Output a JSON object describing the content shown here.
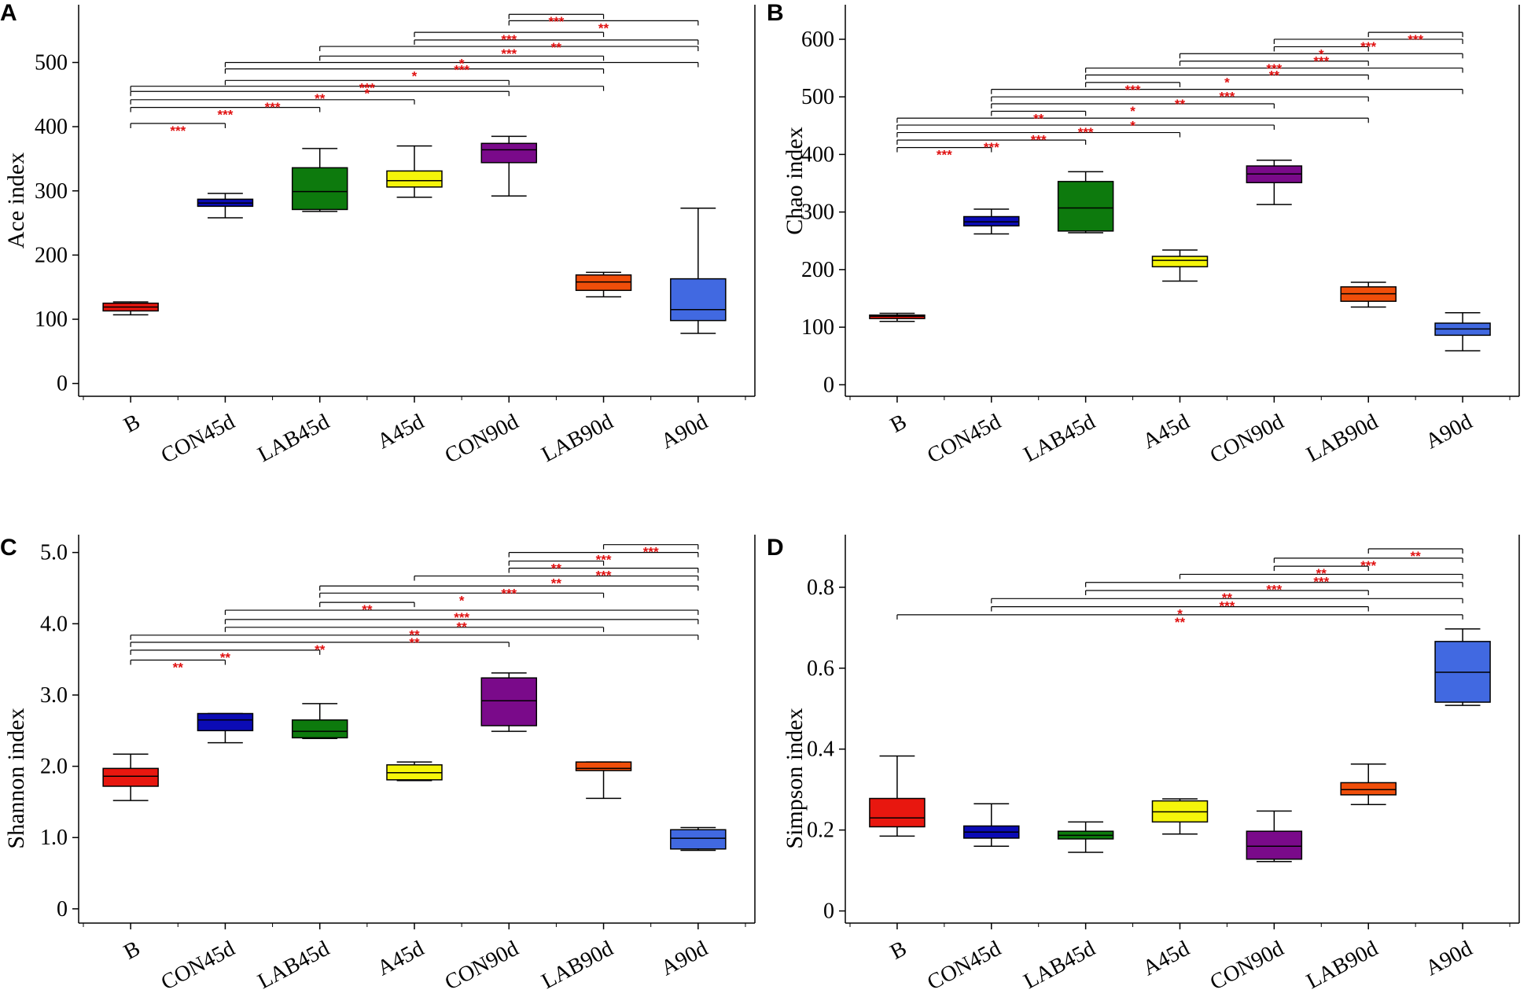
{
  "chart_data": [
    {
      "type": "box",
      "panel": "A",
      "ylabel": "Ace index",
      "ylim": [
        -20,
        590
      ],
      "yticks": [
        {
          "v": 0,
          "label": "0"
        },
        {
          "v": 100,
          "label": "100"
        },
        {
          "v": 200,
          "label": "200"
        },
        {
          "v": 300,
          "label": "300"
        },
        {
          "v": 400,
          "label": "400"
        },
        {
          "v": 500,
          "label": "500"
        }
      ],
      "categories": [
        "B",
        "CON45d",
        "LAB45d",
        "A45d",
        "CON90d",
        "LAB90d",
        "A90d"
      ],
      "colors": [
        "#e8170f",
        "#0b0bb5",
        "#0d7a0d",
        "#f5f50a",
        "#7a0a8a",
        "#f04e0a",
        "#4169e1"
      ],
      "boxes": [
        {
          "min": 107,
          "q1": 113,
          "median": 119,
          "q3": 125,
          "max": 127
        },
        {
          "min": 258,
          "q1": 276,
          "median": 281,
          "q3": 287,
          "max": 296
        },
        {
          "min": 268,
          "q1": 271,
          "median": 299,
          "q3": 336,
          "max": 366
        },
        {
          "min": 290,
          "q1": 306,
          "median": 316,
          "q3": 331,
          "max": 370
        },
        {
          "min": 292,
          "q1": 344,
          "median": 364,
          "q3": 374,
          "max": 385
        },
        {
          "min": 135,
          "q1": 145,
          "median": 158,
          "q3": 169,
          "max": 173
        },
        {
          "min": 78,
          "q1": 98,
          "median": 115,
          "q3": 163,
          "max": 273
        }
      ],
      "comparisons": [
        {
          "a": 0,
          "b": 1,
          "v": 405,
          "label": "***"
        },
        {
          "a": 0,
          "b": 2,
          "v": 430,
          "label": "***"
        },
        {
          "a": 0,
          "b": 3,
          "v": 442,
          "label": "***"
        },
        {
          "a": 0,
          "b": 4,
          "v": 455,
          "label": "**"
        },
        {
          "a": 0,
          "b": 5,
          "v": 463,
          "label": "*"
        },
        {
          "a": 1,
          "b": 4,
          "v": 472,
          "label": "***"
        },
        {
          "a": 1,
          "b": 5,
          "v": 490,
          "label": "*"
        },
        {
          "a": 1,
          "b": 6,
          "v": 500,
          "label": "***"
        },
        {
          "a": 2,
          "b": 5,
          "v": 510,
          "label": "*"
        },
        {
          "a": 2,
          "b": 6,
          "v": 525,
          "label": "***"
        },
        {
          "a": 3,
          "b": 6,
          "v": 535,
          "label": "**"
        },
        {
          "a": 3,
          "b": 5,
          "v": 547,
          "label": "***"
        },
        {
          "a": 4,
          "b": 6,
          "v": 565,
          "label": "**"
        },
        {
          "a": 4,
          "b": 5,
          "v": 575,
          "label": "***"
        }
      ]
    },
    {
      "type": "box",
      "panel": "B",
      "ylabel": "Chao index",
      "ylim": [
        -20,
        660
      ],
      "yticks": [
        {
          "v": 0,
          "label": "0"
        },
        {
          "v": 100,
          "label": "100"
        },
        {
          "v": 200,
          "label": "200"
        },
        {
          "v": 300,
          "label": "300"
        },
        {
          "v": 400,
          "label": "400"
        },
        {
          "v": 500,
          "label": "500"
        },
        {
          "v": 600,
          "label": "600"
        }
      ],
      "categories": [
        "B",
        "CON45d",
        "LAB45d",
        "A45d",
        "CON90d",
        "LAB90d",
        "A90d"
      ],
      "colors": [
        "#e8170f",
        "#0b0bb5",
        "#0d7a0d",
        "#f5f50a",
        "#7a0a8a",
        "#f04e0a",
        "#4169e1"
      ],
      "boxes": [
        {
          "min": 110,
          "q1": 115,
          "median": 119,
          "q3": 121,
          "max": 124
        },
        {
          "min": 262,
          "q1": 276,
          "median": 283,
          "q3": 292,
          "max": 305
        },
        {
          "min": 264,
          "q1": 267,
          "median": 307,
          "q3": 353,
          "max": 370
        },
        {
          "min": 180,
          "q1": 205,
          "median": 216,
          "q3": 223,
          "max": 234
        },
        {
          "min": 313,
          "q1": 351,
          "median": 366,
          "q3": 380,
          "max": 390
        },
        {
          "min": 135,
          "q1": 145,
          "median": 158,
          "q3": 170,
          "max": 178
        },
        {
          "min": 59,
          "q1": 86,
          "median": 97,
          "q3": 107,
          "max": 125
        }
      ],
      "comparisons": [
        {
          "a": 0,
          "b": 1,
          "v": 412,
          "label": "***"
        },
        {
          "a": 0,
          "b": 2,
          "v": 425,
          "label": "***"
        },
        {
          "a": 0,
          "b": 3,
          "v": 438,
          "label": "***"
        },
        {
          "a": 0,
          "b": 4,
          "v": 451,
          "label": "***"
        },
        {
          "a": 0,
          "b": 5,
          "v": 463,
          "label": "*"
        },
        {
          "a": 1,
          "b": 2,
          "v": 475,
          "label": "**"
        },
        {
          "a": 1,
          "b": 4,
          "v": 488,
          "label": "*"
        },
        {
          "a": 1,
          "b": 5,
          "v": 500,
          "label": "**"
        },
        {
          "a": 1,
          "b": 6,
          "v": 513,
          "label": "***"
        },
        {
          "a": 2,
          "b": 3,
          "v": 525,
          "label": "***"
        },
        {
          "a": 2,
          "b": 5,
          "v": 538,
          "label": "*"
        },
        {
          "a": 2,
          "b": 6,
          "v": 550,
          "label": "**"
        },
        {
          "a": 3,
          "b": 5,
          "v": 562,
          "label": "***"
        },
        {
          "a": 3,
          "b": 6,
          "v": 575,
          "label": "***"
        },
        {
          "a": 4,
          "b": 5,
          "v": 587,
          "label": "*"
        },
        {
          "a": 4,
          "b": 6,
          "v": 600,
          "label": "***"
        },
        {
          "a": 5,
          "b": 6,
          "v": 612,
          "label": "***"
        }
      ]
    },
    {
      "type": "box",
      "panel": "C",
      "ylabel": "Shannon index",
      "ylim": [
        -0.2,
        5.25
      ],
      "yticks": [
        {
          "v": 0,
          "label": "0"
        },
        {
          "v": 1,
          "label": "1.0"
        },
        {
          "v": 2,
          "label": "2.0"
        },
        {
          "v": 3,
          "label": "3.0"
        },
        {
          "v": 4,
          "label": "4.0"
        },
        {
          "v": 5,
          "label": "5.0"
        }
      ],
      "categories": [
        "B",
        "CON45d",
        "LAB45d",
        "A45d",
        "CON90d",
        "LAB90d",
        "A90d"
      ],
      "colors": [
        "#e8170f",
        "#0b0bb5",
        "#0d7a0d",
        "#f5f50a",
        "#7a0a8a",
        "#f04e0a",
        "#4169e1"
      ],
      "boxes": [
        {
          "min": 1.52,
          "q1": 1.72,
          "median": 1.86,
          "q3": 1.97,
          "max": 2.17
        },
        {
          "min": 2.33,
          "q1": 2.5,
          "median": 2.65,
          "q3": 2.74,
          "max": 2.74
        },
        {
          "min": 2.39,
          "q1": 2.4,
          "median": 2.49,
          "q3": 2.65,
          "max": 2.88
        },
        {
          "min": 1.8,
          "q1": 1.81,
          "median": 1.91,
          "q3": 2.02,
          "max": 2.06
        },
        {
          "min": 2.49,
          "q1": 2.57,
          "median": 2.92,
          "q3": 3.24,
          "max": 3.31
        },
        {
          "min": 1.55,
          "q1": 1.94,
          "median": 1.97,
          "q3": 2.06,
          "max": 2.06
        },
        {
          "min": 0.82,
          "q1": 0.84,
          "median": 0.99,
          "q3": 1.11,
          "max": 1.14
        }
      ],
      "comparisons": [
        {
          "a": 0,
          "b": 1,
          "v": 3.49,
          "label": "**"
        },
        {
          "a": 0,
          "b": 2,
          "v": 3.63,
          "label": "**"
        },
        {
          "a": 0,
          "b": 4,
          "v": 3.74,
          "label": "**"
        },
        {
          "a": 0,
          "b": 6,
          "v": 3.84,
          "label": "**"
        },
        {
          "a": 1,
          "b": 5,
          "v": 3.95,
          "label": "**"
        },
        {
          "a": 1,
          "b": 6,
          "v": 4.06,
          "label": "**"
        },
        {
          "a": 1,
          "b": 6,
          "v": 4.19,
          "label": "***"
        },
        {
          "a": 2,
          "b": 3,
          "v": 4.3,
          "label": "**"
        },
        {
          "a": 2,
          "b": 5,
          "v": 4.43,
          "label": "*"
        },
        {
          "a": 2,
          "b": 6,
          "v": 4.53,
          "label": "***"
        },
        {
          "a": 3,
          "b": 6,
          "v": 4.67,
          "label": "**"
        },
        {
          "a": 4,
          "b": 6,
          "v": 4.78,
          "label": "***"
        },
        {
          "a": 4,
          "b": 5,
          "v": 4.88,
          "label": "**"
        },
        {
          "a": 4,
          "b": 6,
          "v": 5.0,
          "label": "***"
        },
        {
          "a": 5,
          "b": 6,
          "v": 5.11,
          "label": "***"
        }
      ]
    },
    {
      "type": "box",
      "panel": "D",
      "ylabel": "Simpson index",
      "ylim": [
        -0.03,
        0.93
      ],
      "yticks": [
        {
          "v": 0,
          "label": "0"
        },
        {
          "v": 0.2,
          "label": "0.2"
        },
        {
          "v": 0.4,
          "label": "0.4"
        },
        {
          "v": 0.6,
          "label": "0.6"
        },
        {
          "v": 0.8,
          "label": "0.8"
        }
      ],
      "categories": [
        "B",
        "CON45d",
        "LAB45d",
        "A45d",
        "CON90d",
        "LAB90d",
        "A90d"
      ],
      "colors": [
        "#e8170f",
        "#0b0bb5",
        "#0d7a0d",
        "#f5f50a",
        "#7a0a8a",
        "#f04e0a",
        "#4169e1"
      ],
      "boxes": [
        {
          "min": 0.185,
          "q1": 0.208,
          "median": 0.23,
          "q3": 0.278,
          "max": 0.383
        },
        {
          "min": 0.16,
          "q1": 0.18,
          "median": 0.195,
          "q3": 0.21,
          "max": 0.265
        },
        {
          "min": 0.145,
          "q1": 0.178,
          "median": 0.187,
          "q3": 0.197,
          "max": 0.22
        },
        {
          "min": 0.19,
          "q1": 0.22,
          "median": 0.245,
          "q3": 0.272,
          "max": 0.277
        },
        {
          "min": 0.122,
          "q1": 0.128,
          "median": 0.16,
          "q3": 0.197,
          "max": 0.247
        },
        {
          "min": 0.263,
          "q1": 0.287,
          "median": 0.3,
          "q3": 0.317,
          "max": 0.363
        },
        {
          "min": 0.508,
          "q1": 0.516,
          "median": 0.59,
          "q3": 0.666,
          "max": 0.697
        }
      ],
      "comparisons": [
        {
          "a": 0,
          "b": 6,
          "v": 0.732,
          "label": "**"
        },
        {
          "a": 1,
          "b": 5,
          "v": 0.752,
          "label": "*"
        },
        {
          "a": 1,
          "b": 6,
          "v": 0.772,
          "label": "***"
        },
        {
          "a": 2,
          "b": 5,
          "v": 0.792,
          "label": "**"
        },
        {
          "a": 2,
          "b": 6,
          "v": 0.812,
          "label": "***"
        },
        {
          "a": 3,
          "b": 6,
          "v": 0.832,
          "label": "***"
        },
        {
          "a": 4,
          "b": 5,
          "v": 0.852,
          "label": "**"
        },
        {
          "a": 4,
          "b": 6,
          "v": 0.872,
          "label": "***"
        },
        {
          "a": 5,
          "b": 6,
          "v": 0.895,
          "label": "**"
        }
      ]
    }
  ]
}
